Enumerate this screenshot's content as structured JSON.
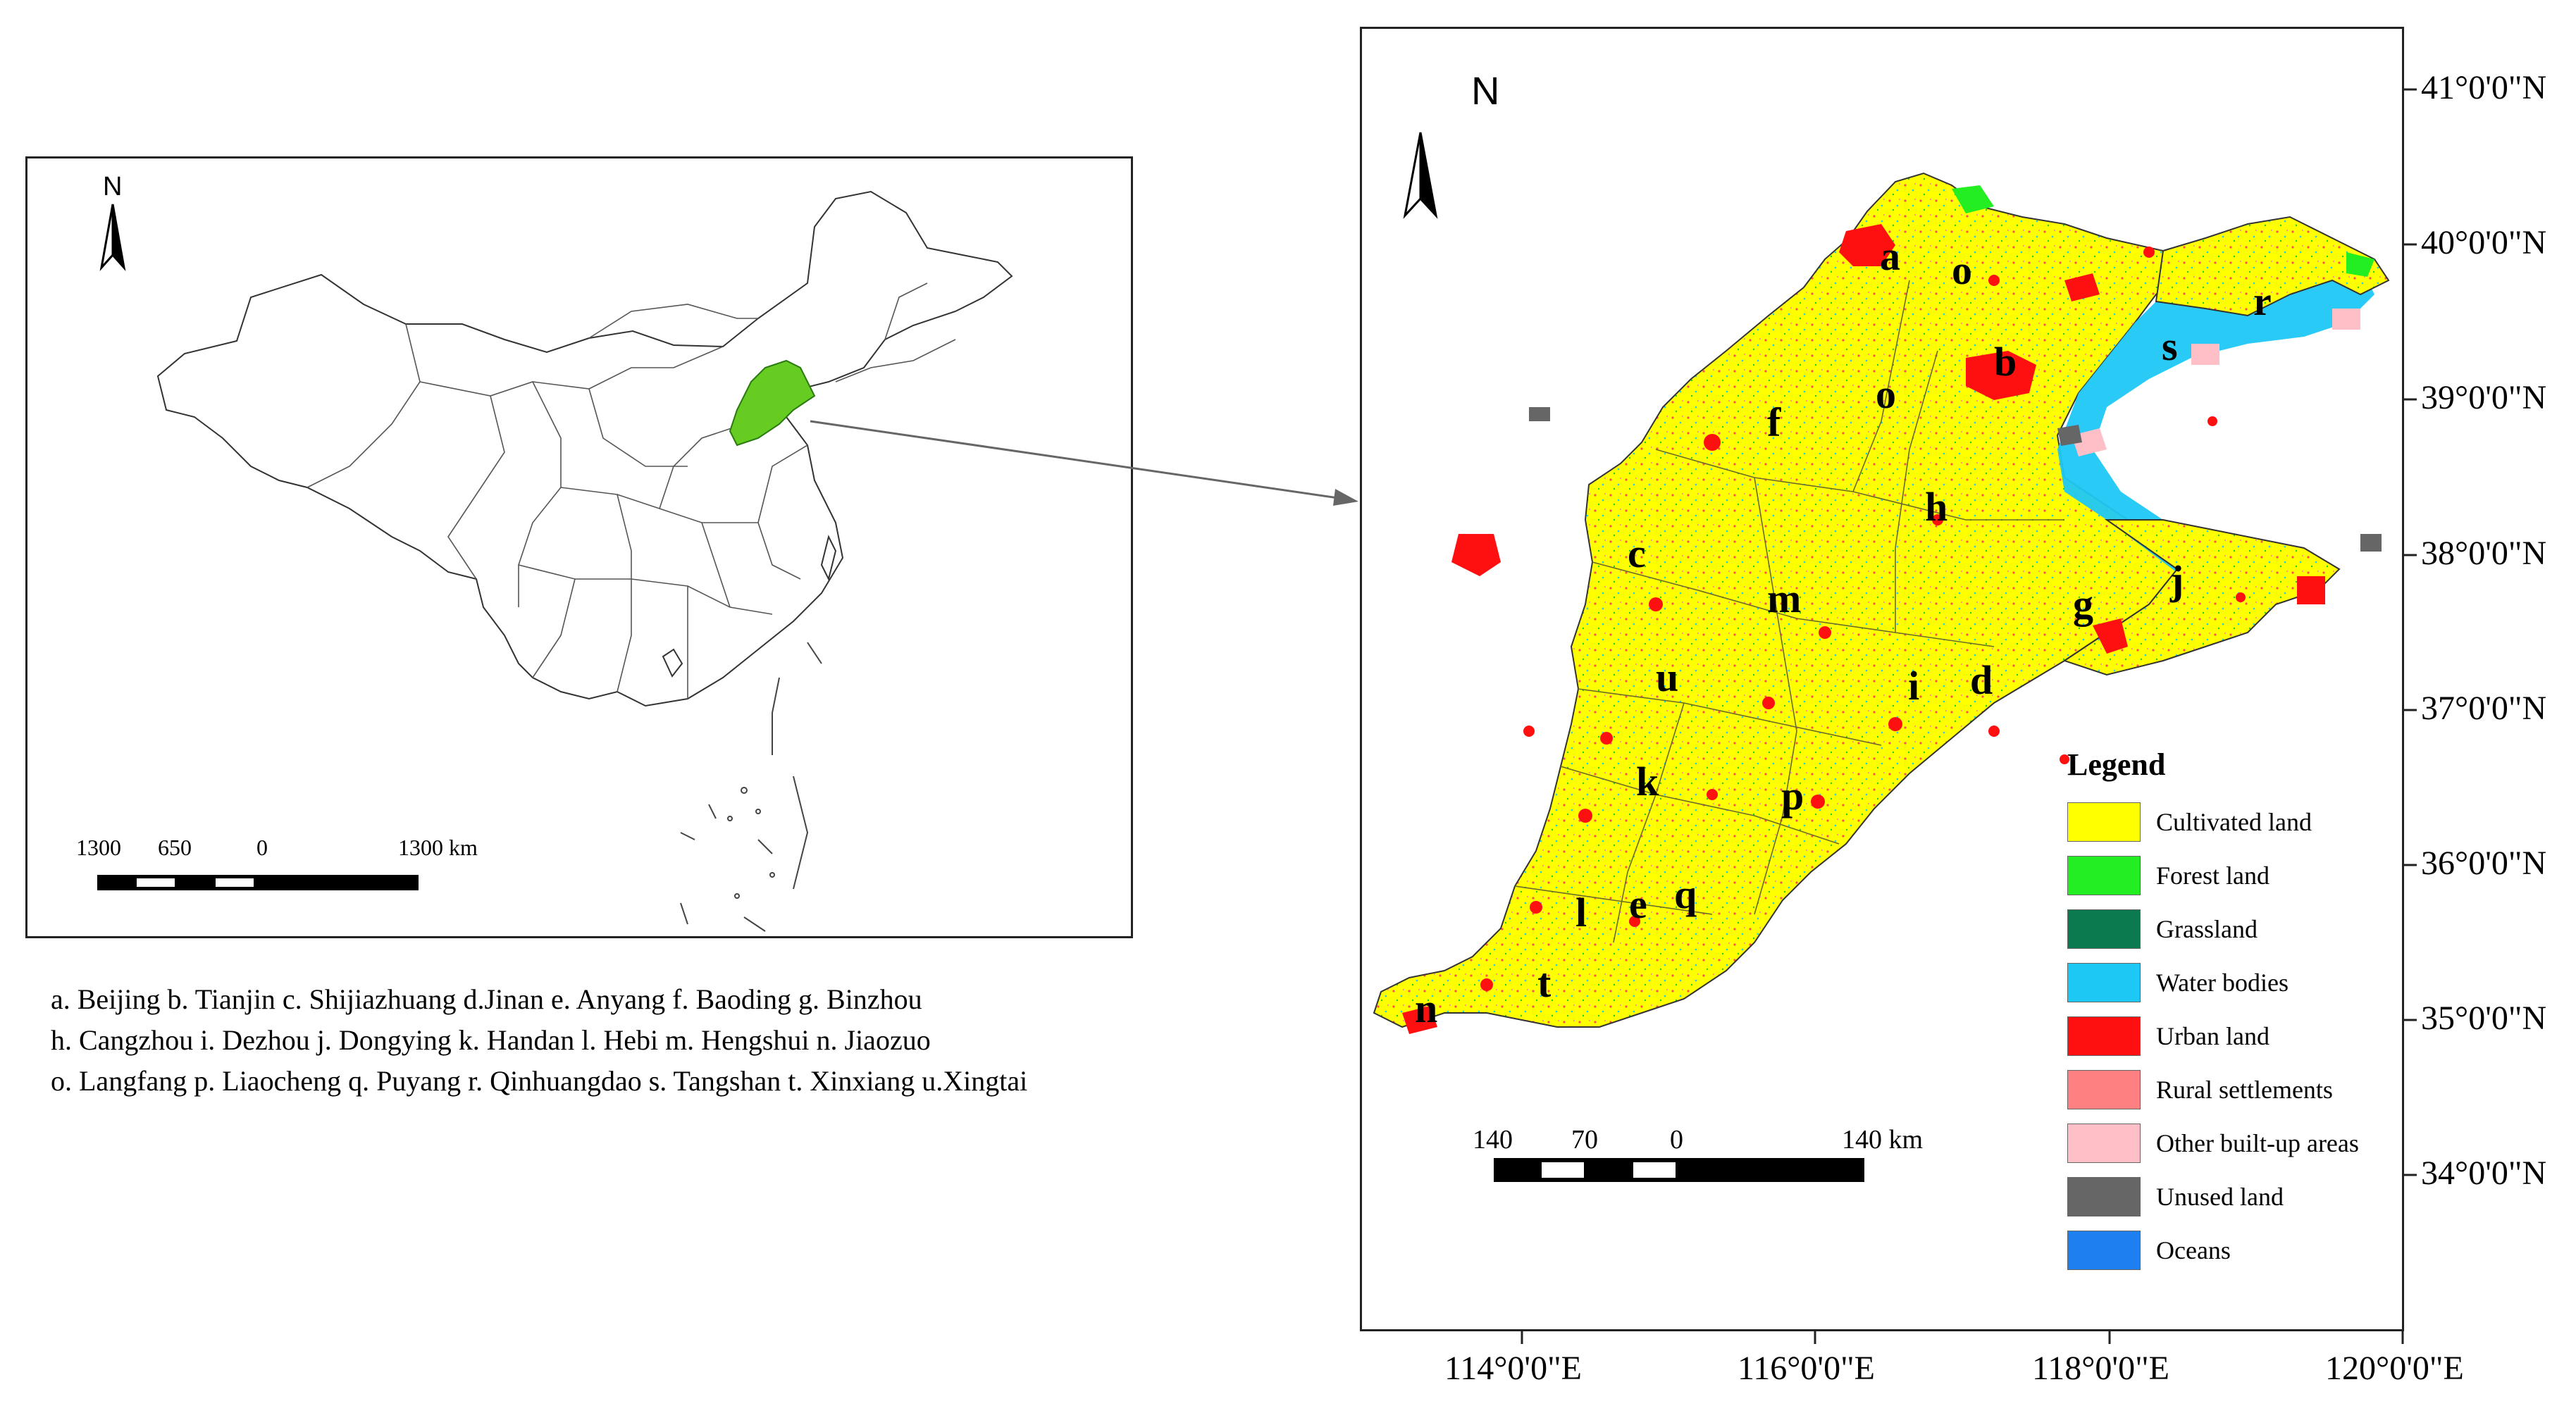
{
  "inset_map": {
    "north_label": "N",
    "scale_ticks": [
      "1300",
      "650",
      "0",
      "1300 km"
    ]
  },
  "caption_lines": [
    "a. Beijing b. Tianjin c. Shijiazhuang d.Jinan e. Anyang f. Baoding g. Binzhou",
    "h. Cangzhou i. Dezhou j. Dongying k. Handan l. Hebi m. Hengshui n. Jiaozuo",
    "o. Langfang p. Liaocheng q. Puyang r. Qinhuangdao s. Tangshan t. Xinxiang u.Xingtai"
  ],
  "main_map": {
    "north_label": "N",
    "city_letters": [
      "a",
      "b",
      "c",
      "d",
      "e",
      "f",
      "g",
      "h",
      "i",
      "j",
      "k",
      "l",
      "m",
      "n",
      "o",
      "o",
      "p",
      "q",
      "r",
      "s",
      "t",
      "u"
    ],
    "latitude_labels": [
      "41°0'0\"N",
      "40°0'0\"N",
      "39°0'0\"N",
      "38°0'0\"N",
      "37°0'0\"N",
      "36°0'0\"N",
      "35°0'0\"N",
      "34°0'0\"N"
    ],
    "longitude_labels": [
      "114°0'0\"E",
      "116°0'0\"E",
      "118°0'0\"E",
      "120°0'0\"E"
    ],
    "scale_ticks": [
      "140",
      "70",
      "0",
      "140 km"
    ]
  },
  "legend": {
    "title": "Legend",
    "items": [
      {
        "label": "Cultivated land",
        "color": "#ffff00"
      },
      {
        "label": "Forest land",
        "color": "#22ee22"
      },
      {
        "label": "Grassland",
        "color": "#0b7a4e"
      },
      {
        "label": "Water bodies",
        "color": "#1ec8f5"
      },
      {
        "label": "Urban land",
        "color": "#ff1010"
      },
      {
        "label": "Rural settlements",
        "color": "#ff8080"
      },
      {
        "label": "Other built-up areas",
        "color": "#ffbfc6"
      },
      {
        "label": "Unused land",
        "color": "#666666"
      },
      {
        "label": "Oceans",
        "color": "#1e7ff0"
      }
    ]
  }
}
